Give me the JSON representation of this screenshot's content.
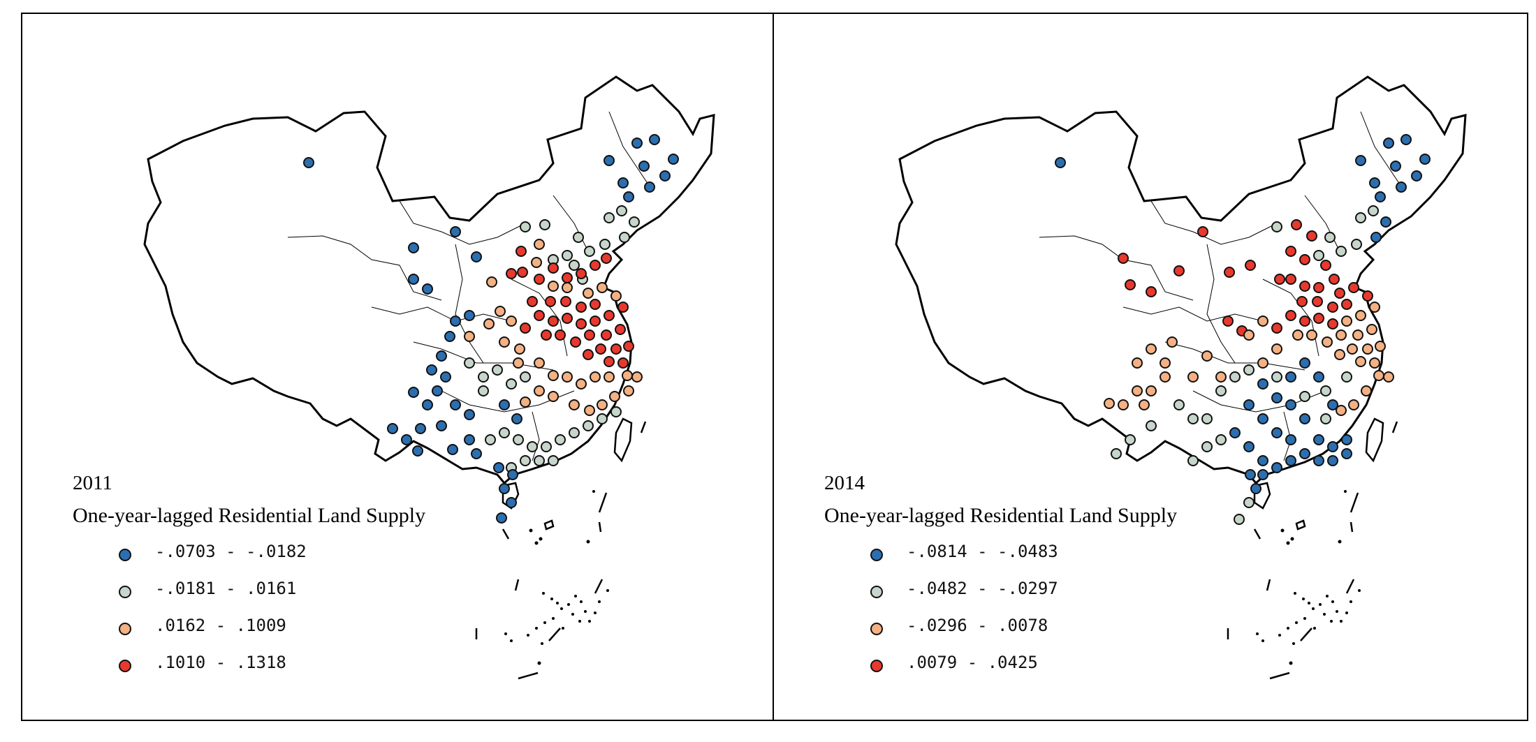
{
  "colors": {
    "class1": "#2b6fb0",
    "class2": "#c7d6cb",
    "class3": "#f4b183",
    "class4": "#e8392e",
    "border": "#000000"
  },
  "panels": [
    {
      "year": "2011",
      "title": "One-year-lagged Residential Land Supply",
      "legend": [
        {
          "label": "-.0703 - -.0182",
          "class": "class1"
        },
        {
          "label": "-.0181 - .0161",
          "class": "class2"
        },
        {
          "label": ".0162 - .1009",
          "class": "class3"
        },
        {
          "label": ".1010 - .1318",
          "class": "class4"
        }
      ]
    },
    {
      "year": "2014",
      "title": "One-year-lagged Residential Land Supply",
      "legend": [
        {
          "label": "-.0814 - -.0483",
          "class": "class1"
        },
        {
          "label": "-.0482 - -.0297",
          "class": "class2"
        },
        {
          "label": "-.0296 - .0078",
          "class": "class3"
        },
        {
          "label": ".0079 - .0425",
          "class": "class4"
        }
      ]
    }
  ]
}
